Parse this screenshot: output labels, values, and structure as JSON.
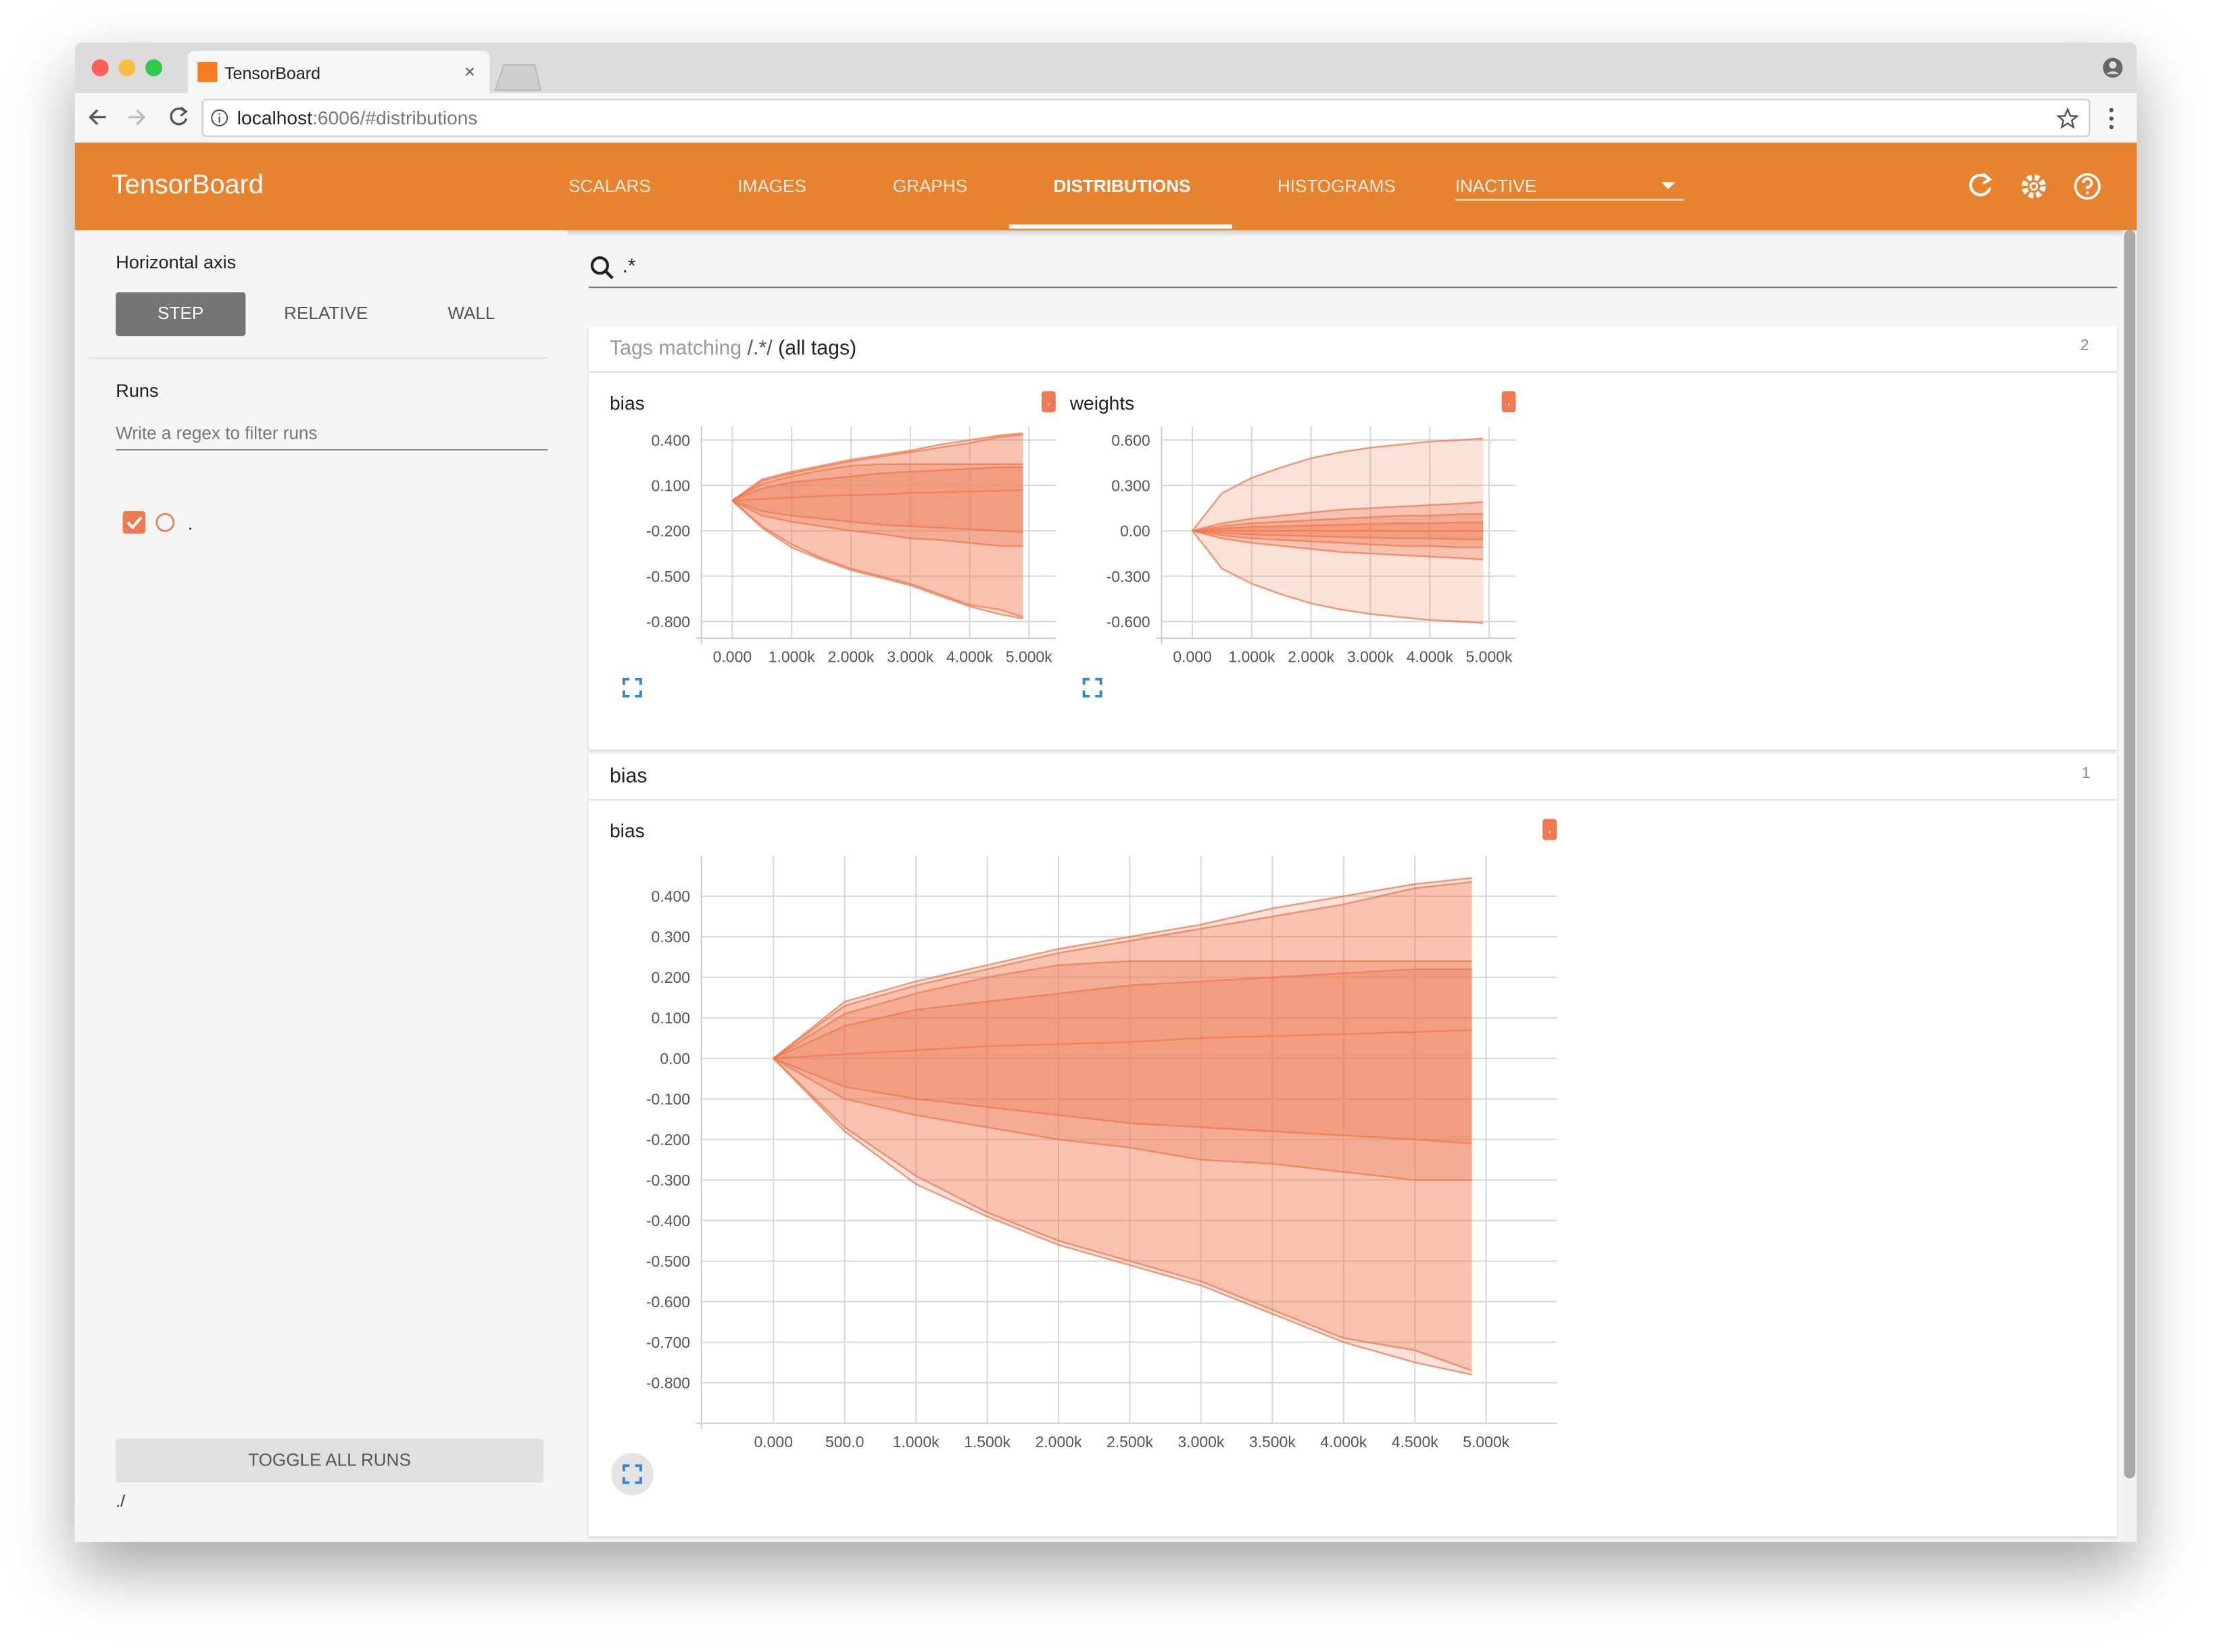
{
  "browser": {
    "tab": "TensorBoard",
    "url_host": "localhost",
    "url_path": ":6006/#distributions"
  },
  "header": {
    "title": "TensorBoard",
    "tabs": [
      "SCALARS",
      "IMAGES",
      "GRAPHS",
      "DISTRIBUTIONS",
      "HISTOGRAMS"
    ],
    "dropdown": "INACTIVE"
  },
  "sidebar": {
    "axis_title": "Horizontal axis",
    "axis_options": [
      "STEP",
      "RELATIVE",
      "WALL"
    ],
    "runs_title": "Runs",
    "filter_placeholder": "Write a regex to filter runs",
    "run": ".",
    "toggle": "TOGGLE ALL RUNS",
    "logdir": "./"
  },
  "search": ".*",
  "sections": [
    {
      "prefix": "Tags matching",
      "pattern": "/.*/",
      "suffix": "(all tags)",
      "count": 2
    },
    {
      "title": "bias",
      "count": 1
    }
  ],
  "chart_data": [
    {
      "type": "distribution",
      "title": "bias",
      "run": ".",
      "color": "#ee7a52",
      "x": [
        0,
        500,
        1000,
        1500,
        2000,
        2500,
        3000,
        3500,
        4000,
        4500,
        4900
      ],
      "series": [
        {
          "values": [
            0,
            0.14,
            0.19,
            0.23,
            0.27,
            0.3,
            0.33,
            0.37,
            0.4,
            0.43,
            0.445
          ]
        },
        {
          "values": [
            0,
            0.13,
            0.18,
            0.22,
            0.26,
            0.29,
            0.32,
            0.35,
            0.38,
            0.42,
            0.435
          ]
        },
        {
          "values": [
            0,
            0.11,
            0.16,
            0.2,
            0.23,
            0.24,
            0.24,
            0.24,
            0.24,
            0.24,
            0.24
          ]
        },
        {
          "values": [
            0,
            0.08,
            0.12,
            0.14,
            0.16,
            0.18,
            0.19,
            0.2,
            0.21,
            0.22,
            0.22
          ]
        },
        {
          "values": [
            0,
            0.01,
            0.02,
            0.03,
            0.035,
            0.04,
            0.05,
            0.055,
            0.06,
            0.065,
            0.07
          ]
        },
        {
          "values": [
            0,
            -0.07,
            -0.1,
            -0.12,
            -0.14,
            -0.16,
            -0.17,
            -0.18,
            -0.19,
            -0.2,
            -0.21
          ]
        },
        {
          "values": [
            0,
            -0.1,
            -0.14,
            -0.17,
            -0.2,
            -0.22,
            -0.25,
            -0.26,
            -0.28,
            -0.3,
            -0.3
          ]
        },
        {
          "values": [
            0,
            -0.17,
            -0.29,
            -0.38,
            -0.45,
            -0.5,
            -0.55,
            -0.62,
            -0.69,
            -0.72,
            -0.77
          ]
        },
        {
          "values": [
            0,
            -0.18,
            -0.31,
            -0.39,
            -0.46,
            -0.51,
            -0.56,
            -0.63,
            -0.7,
            -0.75,
            -0.78
          ]
        }
      ],
      "xlim": [
        -520,
        5450
      ],
      "ylim": [
        -0.91,
        0.49
      ],
      "xticks": [
        {
          "value": 0,
          "label": "0.000"
        },
        {
          "value": 1000,
          "label": "1.000k"
        },
        {
          "value": 2000,
          "label": "2.000k"
        },
        {
          "value": 3000,
          "label": "3.000k"
        },
        {
          "value": 4000,
          "label": "4.000k"
        },
        {
          "value": 5000,
          "label": "5.000k"
        }
      ],
      "yticks": [
        {
          "value": 0.4,
          "label": "0.400"
        },
        {
          "value": 0.1,
          "label": "0.100"
        },
        {
          "value": -0.2,
          "label": "-0.200"
        },
        {
          "value": -0.5,
          "label": "-0.500"
        },
        {
          "value": -0.8,
          "label": "-0.800"
        }
      ],
      "grid": true
    },
    {
      "type": "distribution",
      "title": "weights",
      "run": ".",
      "color": "#ee7a52",
      "x": [
        0,
        500,
        1000,
        1500,
        2000,
        2500,
        3000,
        3500,
        4000,
        4500,
        4900
      ],
      "series": [
        {
          "values": [
            0,
            0.25,
            0.35,
            0.42,
            0.48,
            0.52,
            0.55,
            0.57,
            0.59,
            0.6,
            0.61
          ]
        },
        {
          "values": [
            0,
            0.05,
            0.08,
            0.1,
            0.12,
            0.14,
            0.15,
            0.16,
            0.17,
            0.18,
            0.19
          ]
        },
        {
          "values": [
            0,
            0.03,
            0.05,
            0.06,
            0.07,
            0.08,
            0.09,
            0.1,
            0.1,
            0.11,
            0.11
          ]
        },
        {
          "values": [
            0,
            0.015,
            0.025,
            0.03,
            0.035,
            0.04,
            0.045,
            0.05,
            0.05,
            0.055,
            0.055
          ]
        },
        {
          "values": [
            0,
            0,
            0,
            0,
            0,
            0,
            0,
            0,
            0,
            0,
            0
          ]
        },
        {
          "values": [
            0,
            -0.015,
            -0.025,
            -0.03,
            -0.035,
            -0.04,
            -0.045,
            -0.05,
            -0.05,
            -0.055,
            -0.055
          ]
        },
        {
          "values": [
            0,
            -0.03,
            -0.05,
            -0.06,
            -0.07,
            -0.08,
            -0.09,
            -0.1,
            -0.1,
            -0.11,
            -0.11
          ]
        },
        {
          "values": [
            0,
            -0.05,
            -0.08,
            -0.1,
            -0.12,
            -0.14,
            -0.15,
            -0.16,
            -0.17,
            -0.18,
            -0.19
          ]
        },
        {
          "values": [
            0,
            -0.25,
            -0.35,
            -0.42,
            -0.48,
            -0.52,
            -0.55,
            -0.57,
            -0.59,
            -0.6,
            -0.61
          ]
        }
      ],
      "xlim": [
        -520,
        5450
      ],
      "ylim": [
        -0.71,
        0.69
      ],
      "xticks": [
        {
          "value": 0,
          "label": "0.000"
        },
        {
          "value": 1000,
          "label": "1.000k"
        },
        {
          "value": 2000,
          "label": "2.000k"
        },
        {
          "value": 3000,
          "label": "3.000k"
        },
        {
          "value": 4000,
          "label": "4.000k"
        },
        {
          "value": 5000,
          "label": "5.000k"
        }
      ],
      "yticks": [
        {
          "value": 0.6,
          "label": "0.600"
        },
        {
          "value": 0.3,
          "label": "0.300"
        },
        {
          "value": 0,
          "label": "0.00"
        },
        {
          "value": -0.3,
          "label": "-0.300"
        },
        {
          "value": -0.6,
          "label": "-0.600"
        }
      ],
      "grid": true
    },
    {
      "type": "distribution",
      "title": "bias",
      "run": ".",
      "color": "#ee7a52",
      "x": [
        0,
        500,
        1000,
        1500,
        2000,
        2500,
        3000,
        3500,
        4000,
        4500,
        4900
      ],
      "series": [
        {
          "values": [
            0,
            0.14,
            0.19,
            0.23,
            0.27,
            0.3,
            0.33,
            0.37,
            0.4,
            0.43,
            0.445
          ]
        },
        {
          "values": [
            0,
            0.13,
            0.18,
            0.22,
            0.26,
            0.29,
            0.32,
            0.35,
            0.38,
            0.42,
            0.435
          ]
        },
        {
          "values": [
            0,
            0.11,
            0.16,
            0.2,
            0.23,
            0.24,
            0.24,
            0.24,
            0.24,
            0.24,
            0.24
          ]
        },
        {
          "values": [
            0,
            0.08,
            0.12,
            0.14,
            0.16,
            0.18,
            0.19,
            0.2,
            0.21,
            0.22,
            0.22
          ]
        },
        {
          "values": [
            0,
            0.01,
            0.02,
            0.03,
            0.035,
            0.04,
            0.05,
            0.055,
            0.06,
            0.065,
            0.07
          ]
        },
        {
          "values": [
            0,
            -0.07,
            -0.1,
            -0.12,
            -0.14,
            -0.16,
            -0.17,
            -0.18,
            -0.19,
            -0.2,
            -0.21
          ]
        },
        {
          "values": [
            0,
            -0.1,
            -0.14,
            -0.17,
            -0.2,
            -0.22,
            -0.25,
            -0.26,
            -0.28,
            -0.3,
            -0.3
          ]
        },
        {
          "values": [
            0,
            -0.17,
            -0.29,
            -0.38,
            -0.45,
            -0.5,
            -0.55,
            -0.62,
            -0.69,
            -0.72,
            -0.77
          ]
        },
        {
          "values": [
            0,
            -0.18,
            -0.31,
            -0.39,
            -0.46,
            -0.51,
            -0.56,
            -0.63,
            -0.7,
            -0.75,
            -0.78
          ]
        }
      ],
      "xlim": [
        -505,
        5495
      ],
      "ylim": [
        -0.9,
        0.5
      ],
      "xticks": [
        {
          "value": 0,
          "label": "0.000"
        },
        {
          "value": 500,
          "label": "500.0"
        },
        {
          "value": 1000,
          "label": "1.000k"
        },
        {
          "value": 1500,
          "label": "1.500k"
        },
        {
          "value": 2000,
          "label": "2.000k"
        },
        {
          "value": 2500,
          "label": "2.500k"
        },
        {
          "value": 3000,
          "label": "3.000k"
        },
        {
          "value": 3500,
          "label": "3.500k"
        },
        {
          "value": 4000,
          "label": "4.000k"
        },
        {
          "value": 4500,
          "label": "4.500k"
        },
        {
          "value": 5000,
          "label": "5.000k"
        }
      ],
      "yticks": [
        {
          "value": 0.4,
          "label": "0.400"
        },
        {
          "value": 0.3,
          "label": "0.300"
        },
        {
          "value": 0.2,
          "label": "0.200"
        },
        {
          "value": 0.1,
          "label": "0.100"
        },
        {
          "value": 0,
          "label": "0.00"
        },
        {
          "value": -0.1,
          "label": "-0.100"
        },
        {
          "value": -0.2,
          "label": "-0.200"
        },
        {
          "value": -0.3,
          "label": "-0.300"
        },
        {
          "value": -0.4,
          "label": "-0.400"
        },
        {
          "value": -0.5,
          "label": "-0.500"
        },
        {
          "value": -0.6,
          "label": "-0.600"
        },
        {
          "value": -0.7,
          "label": "-0.700"
        },
        {
          "value": -0.8,
          "label": "-0.800"
        }
      ],
      "grid": true
    }
  ]
}
